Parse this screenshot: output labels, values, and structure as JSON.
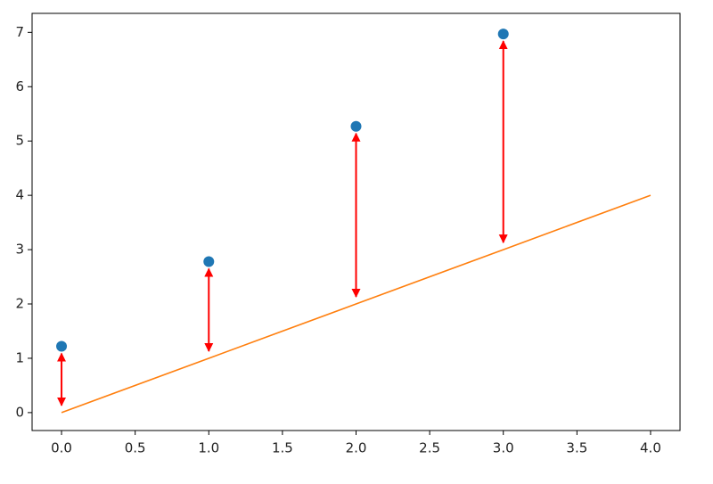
{
  "chart_data": {
    "type": "scatter",
    "xlim": [
      -0.2,
      4.2
    ],
    "ylim": [
      -0.33,
      7.35
    ],
    "xticks": [
      {
        "value": 0,
        "label": "0.0"
      },
      {
        "value": 0.5,
        "label": "0.5"
      },
      {
        "value": 1,
        "label": "1.0"
      },
      {
        "value": 1.5,
        "label": "1.5"
      },
      {
        "value": 2,
        "label": "2.0"
      },
      {
        "value": 2.5,
        "label": "2.5"
      },
      {
        "value": 3,
        "label": "3.0"
      },
      {
        "value": 3.5,
        "label": "3.5"
      },
      {
        "value": 4,
        "label": "4.0"
      }
    ],
    "yticks": [
      0,
      1,
      2,
      3,
      4,
      5,
      6,
      7
    ],
    "series": [
      {
        "type": "scatter",
        "color": "#1f77b4",
        "x": [
          0,
          1,
          2,
          3
        ],
        "values": [
          1.22,
          2.78,
          5.27,
          6.97
        ]
      },
      {
        "type": "line",
        "color": "#ff7f0e",
        "x": [
          0,
          1,
          2,
          3,
          4
        ],
        "values": [
          0,
          1,
          2,
          3,
          4
        ]
      }
    ],
    "arrow_color": "#ff0000"
  }
}
